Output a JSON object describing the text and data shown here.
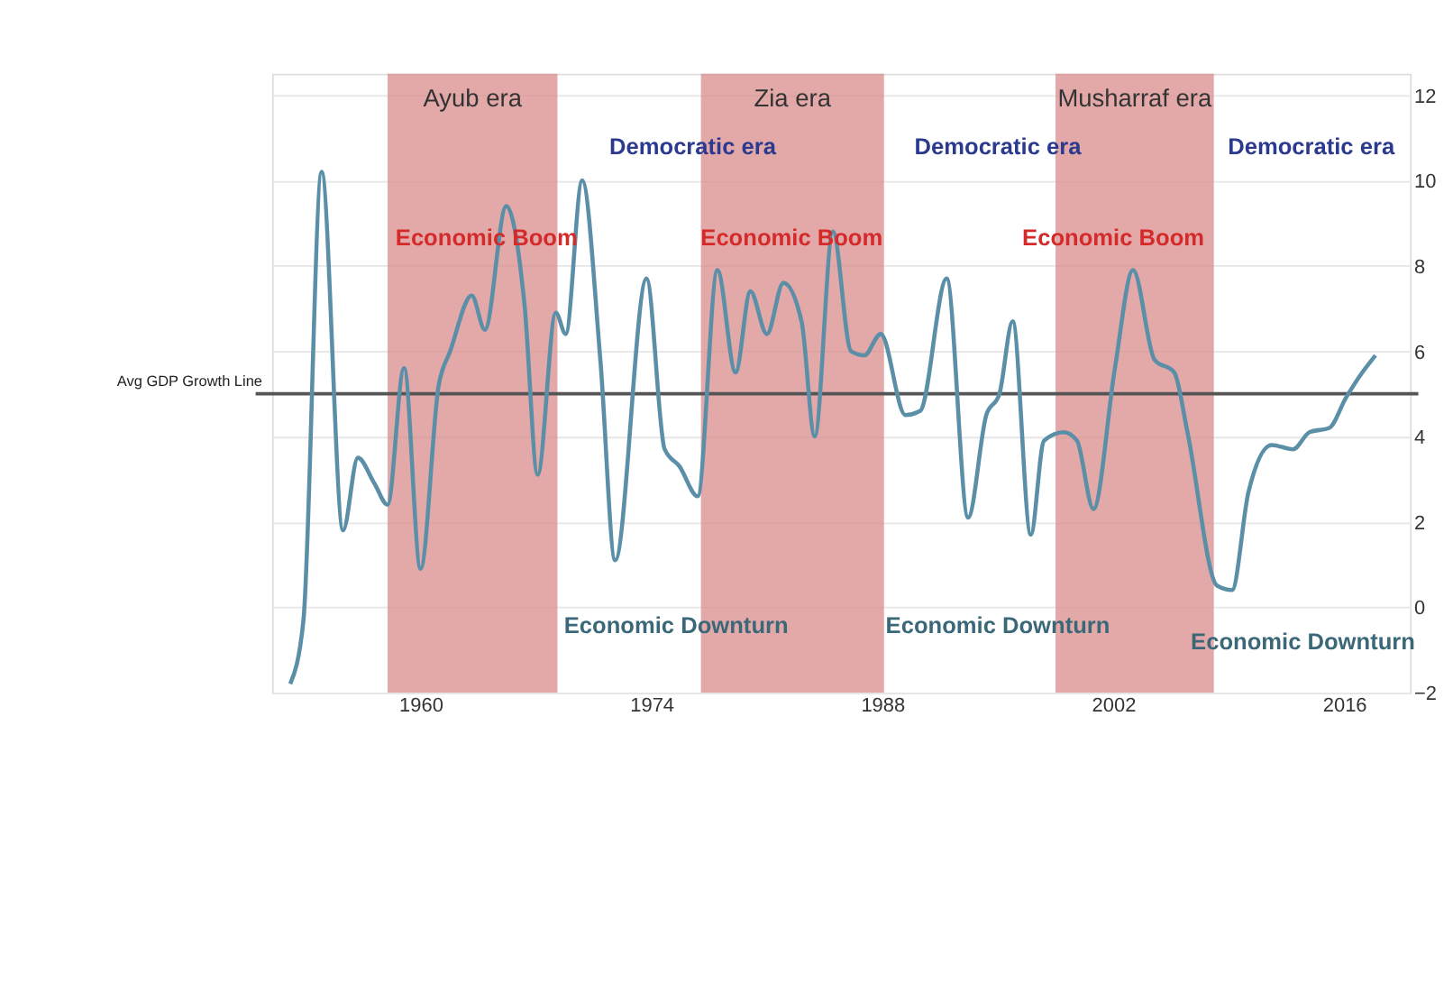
{
  "chart_data": {
    "type": "line",
    "xlim": [
      1951,
      2020
    ],
    "xticks": [
      1960,
      1974,
      1988,
      2002,
      2016
    ],
    "ylim": [
      -2,
      12.5
    ],
    "yticks": [
      -2,
      0,
      2,
      4,
      6,
      8,
      10,
      12
    ],
    "grid": "y",
    "marker": "none",
    "line_style": "solid",
    "series": [
      {
        "color": "#5b8fa8",
        "x": [
          1952.1,
          1952.9,
          1954,
          1955.3,
          1956.2,
          1957.2,
          1958,
          1959,
          1960,
          1961.1,
          1961.8,
          1963.1,
          1963.9,
          1965.2,
          1966.3,
          1967.1,
          1968.2,
          1968.8,
          1969.8,
          1970.9,
          1971.8,
          1973.7,
          1974.8,
          1975.7,
          1976.8,
          1978,
          1979.1,
          1980,
          1981,
          1982,
          1983.1,
          1983.9,
          1985,
          1986.1,
          1986.9,
          1987.9,
          1989.4,
          1990.3,
          1991.9,
          1993.2,
          1994.3,
          1995.1,
          1995.9,
          1997,
          1997.8,
          1999,
          1999.8,
          2000.8,
          2002.1,
          2003.2,
          2004.5,
          2005.7,
          2006.5,
          2008.3,
          2009.2,
          2010.2,
          2011.6,
          2012.9,
          2013.9,
          2015.1,
          2016.1,
          2017.1,
          2017.9
        ],
        "values": [
          -1.8,
          -0.3,
          10.2,
          1.8,
          3.5,
          2.9,
          2.4,
          5.6,
          0.9,
          5.2,
          6.0,
          7.3,
          6.5,
          9.4,
          7.1,
          3.1,
          6.9,
          6.4,
          10.0,
          5.8,
          1.1,
          7.7,
          3.7,
          3.3,
          2.6,
          7.9,
          5.5,
          7.4,
          6.4,
          7.6,
          6.7,
          4.0,
          8.8,
          6.0,
          5.9,
          6.4,
          4.5,
          4.6,
          7.7,
          2.1,
          4.5,
          5.0,
          6.7,
          1.7,
          3.9,
          4.1,
          3.9,
          2.3,
          5.6,
          7.9,
          5.8,
          5.5,
          4.1,
          0.5,
          0.4,
          2.7,
          3.8,
          3.7,
          4.1,
          4.2,
          4.9,
          5.5,
          5.9
        ]
      }
    ],
    "ref_lines": [
      {
        "axis": "y",
        "value": 5,
        "label": "Avg GDP Growth Line",
        "color": "#555555"
      }
    ],
    "bands": [
      {
        "axis": "x",
        "from": 1958,
        "to": 1968.3,
        "label": "Ayub era",
        "color": "#d98c8c"
      },
      {
        "axis": "x",
        "from": 1977,
        "to": 1988.1,
        "label": "Zia era",
        "color": "#d98c8c"
      },
      {
        "axis": "x",
        "from": 1998.5,
        "to": 2008.1,
        "label": "Musharraf era",
        "color": "#d98c8c"
      }
    ],
    "annotations": [
      "Democratic era",
      "Democratic era",
      "Democratic era",
      "Economic Boom",
      "Economic Boom",
      "Economic Boom",
      "Economic Downturn",
      "Economic Downturn",
      "Economic Downturn"
    ]
  }
}
